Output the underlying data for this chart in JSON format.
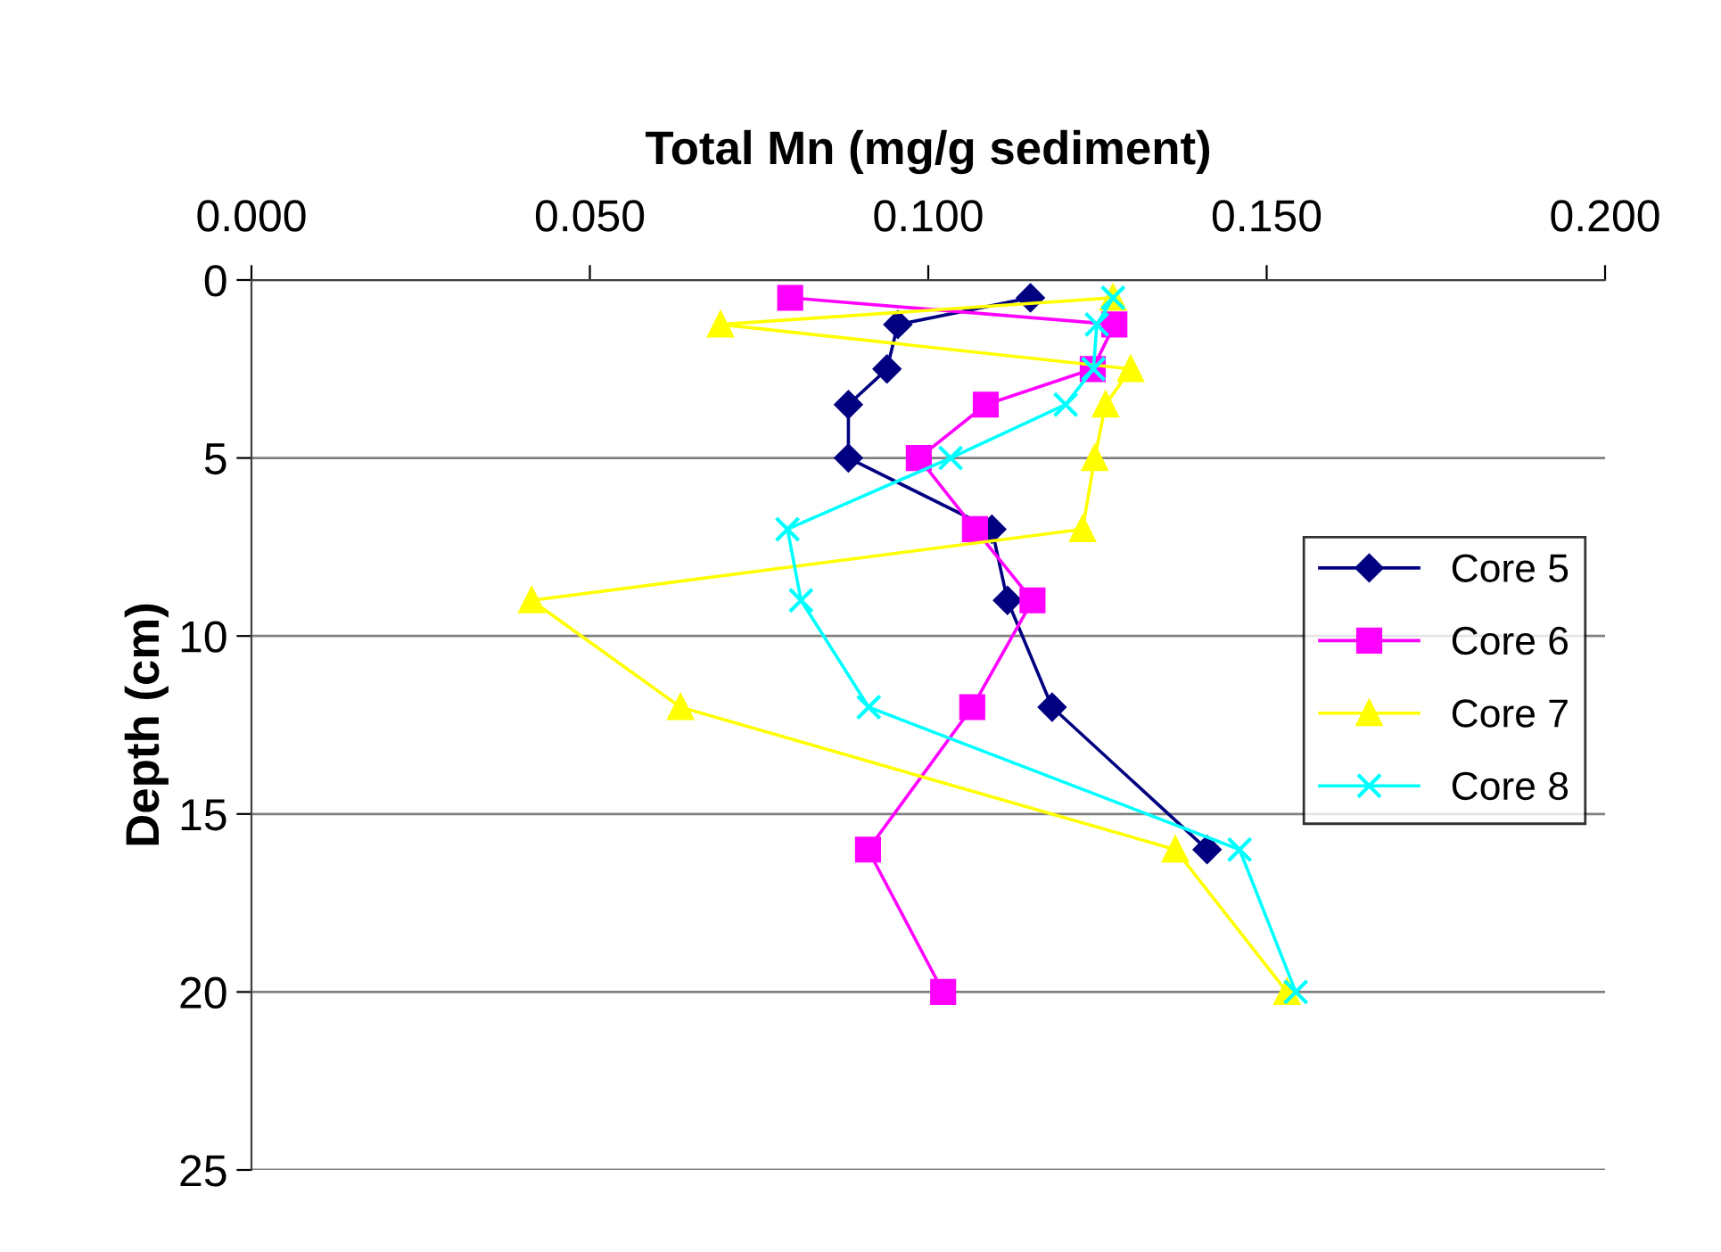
{
  "chart_data": {
    "type": "line",
    "title": "Total Mn (mg/g sediment)",
    "ylabel": "Depth (cm)",
    "xlim": [
      0,
      0.2
    ],
    "xticks": [
      {
        "value": 0,
        "label": "0.000"
      },
      {
        "value": 0.05,
        "label": "0.050"
      },
      {
        "value": 0.1,
        "label": "0.100"
      },
      {
        "value": 0.15,
        "label": "0.150"
      },
      {
        "value": 0.2,
        "label": "0.200"
      }
    ],
    "ylim": [
      25,
      0
    ],
    "yticks": [
      0,
      5,
      10,
      15,
      20,
      25
    ],
    "grid": "y",
    "legend": "right",
    "series": [
      {
        "name": "Core 5",
        "color": "#000080",
        "marker": "diamond",
        "x": [
          0.1151,
          0.0955,
          0.0939,
          0.0882,
          0.0882,
          0.1094,
          0.1117,
          0.1183,
          0.1412
        ],
        "values": [
          0.5,
          1.25,
          2.5,
          3.5,
          5,
          7,
          9,
          12,
          16
        ]
      },
      {
        "name": "Core 6",
        "color": "#ff00ff",
        "marker": "square",
        "x": [
          0.0796,
          0.1275,
          0.1243,
          0.1085,
          0.0986,
          0.1069,
          0.1154,
          0.1065,
          0.0911,
          0.1022
        ],
        "values": [
          0.5,
          1.25,
          2.5,
          3.5,
          5,
          7,
          9,
          12,
          16,
          20
        ]
      },
      {
        "name": "Core 7",
        "color": "#ffff00",
        "marker": "triangle",
        "x": [
          0.1273,
          0.0693,
          0.1299,
          0.1262,
          0.1246,
          0.1228,
          0.0414,
          0.0634,
          0.1365,
          0.153
        ],
        "values": [
          0.5,
          1.25,
          2.5,
          3.5,
          5,
          7,
          9,
          12,
          16,
          20
        ]
      },
      {
        "name": "Core 8",
        "color": "#00ffff",
        "marker": "cross",
        "x": [
          0.1273,
          0.1249,
          0.1244,
          0.1203,
          0.1033,
          0.0792,
          0.0812,
          0.0912,
          0.146,
          0.1543
        ],
        "values": [
          0.5,
          1.25,
          2.5,
          3.5,
          5,
          7,
          9,
          12,
          16,
          20
        ]
      }
    ]
  }
}
